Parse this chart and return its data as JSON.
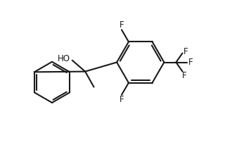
{
  "background_color": "#ffffff",
  "line_color": "#1a1a1a",
  "line_width": 1.5,
  "font_size": 8.5,
  "fig_width": 3.57,
  "fig_height": 2.16,
  "dpi": 100,
  "xlim": [
    0,
    10
  ],
  "ylim": [
    0,
    6
  ]
}
